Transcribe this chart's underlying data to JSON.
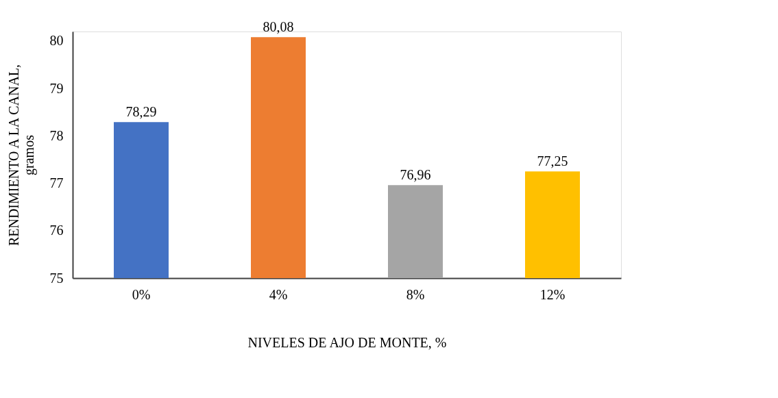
{
  "chart_data": {
    "type": "bar",
    "xlabel": "NIVELES DE AJO DE MONTE, %",
    "ylabel": "RENDIMIENTO  A LA CANAL,\ngramos",
    "categories": [
      "0%",
      "4%",
      "8%",
      "12%"
    ],
    "values": [
      78.29,
      80.08,
      76.96,
      77.25
    ],
    "colors": [
      "#4472c4",
      "#ed7d31",
      "#a5a5a5",
      "#ffc000"
    ],
    "value_labels": [
      "78,29",
      "80,08",
      "76,96",
      "77,25"
    ],
    "ylim": [
      75,
      80.2
    ],
    "yticks": [
      75,
      76,
      77,
      78,
      79,
      80
    ],
    "grid": false
  }
}
